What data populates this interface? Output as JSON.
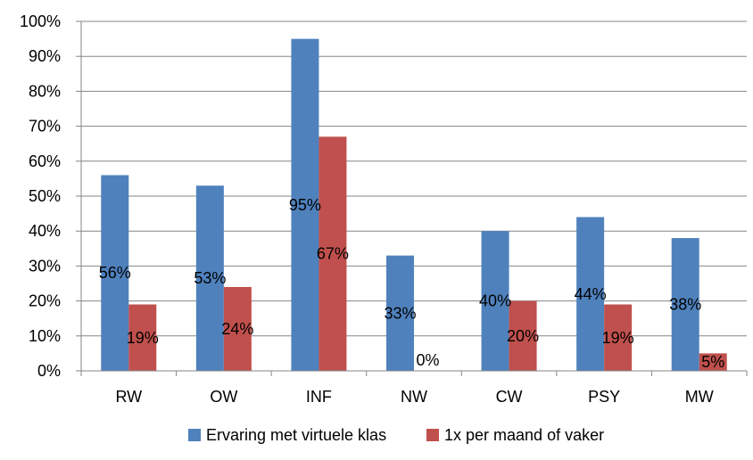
{
  "chart_data": {
    "type": "bar",
    "categories": [
      "RW",
      "OW",
      "INF",
      "NW",
      "CW",
      "PSY",
      "MW"
    ],
    "series": [
      {
        "name": "Ervaring met virtuele klas",
        "values": [
          56,
          53,
          95,
          33,
          40,
          44,
          38
        ],
        "labels": [
          "56%",
          "53%",
          "95%",
          "33%",
          "40%",
          "44%",
          "38%"
        ],
        "color": "#4F81BD"
      },
      {
        "name": "1x per maand of vaker",
        "values": [
          19,
          24,
          67,
          0,
          20,
          19,
          5
        ],
        "labels": [
          "19%",
          "24%",
          "67%",
          "0%",
          "20%",
          "19%",
          "5%"
        ],
        "color": "#C0504D"
      }
    ],
    "yticks": [
      "0%",
      "10%",
      "20%",
      "30%",
      "40%",
      "50%",
      "60%",
      "70%",
      "80%",
      "90%",
      "100%"
    ],
    "ylim": [
      0,
      100
    ],
    "grid": true,
    "legend": "bottom"
  }
}
